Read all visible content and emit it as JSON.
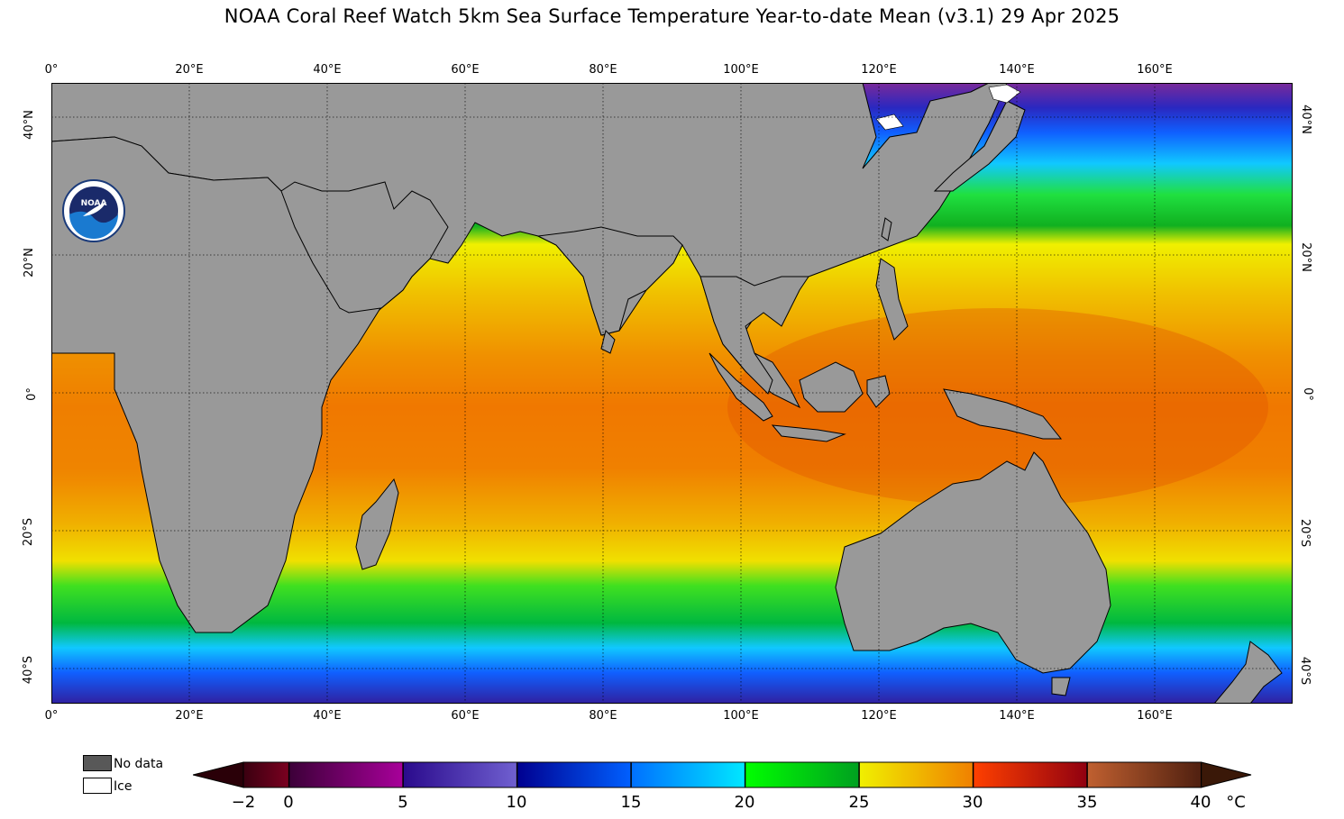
{
  "title": "NOAA Coral Reef Watch 5km Sea Surface Temperature Year-to-date Mean  (v3.1)   29 Apr 2025",
  "lon_labels": [
    "0°",
    "20°E",
    "40°E",
    "60°E",
    "80°E",
    "100°E",
    "120°E",
    "140°E",
    "160°E"
  ],
  "lat_labels": [
    "40°N",
    "20°N",
    "0°",
    "20°S",
    "40°S"
  ],
  "legend": {
    "no_data": "No data",
    "ice": "Ice",
    "no_data_color": "#585858",
    "ice_color": "#ffffff",
    "land_color": "#999999"
  },
  "colorbar": {
    "ticks": [
      "−2",
      "0",
      "5",
      "10",
      "15",
      "20",
      "25",
      "30",
      "35",
      "40"
    ],
    "unit": "°C",
    "segments": [
      {
        "from": -2,
        "to": 0,
        "c1": "#3a0010",
        "c2": "#7a0020"
      },
      {
        "from": 0,
        "to": 5,
        "c1": "#3c0038",
        "c2": "#a8009a"
      },
      {
        "from": 5,
        "to": 10,
        "c1": "#2a0a8c",
        "c2": "#7060d0"
      },
      {
        "from": 10,
        "to": 15,
        "c1": "#000090",
        "c2": "#0060ff"
      },
      {
        "from": 15,
        "to": 20,
        "c1": "#0070ff",
        "c2": "#00e8ff"
      },
      {
        "from": 20,
        "to": 25,
        "c1": "#00ff00",
        "c2": "#00a020"
      },
      {
        "from": 25,
        "to": 30,
        "c1": "#f0f000",
        "c2": "#f08000"
      },
      {
        "from": 30,
        "to": 35,
        "c1": "#ff4000",
        "c2": "#900010"
      },
      {
        "from": 35,
        "to": 40,
        "c1": "#c06030",
        "c2": "#502010"
      }
    ]
  }
}
